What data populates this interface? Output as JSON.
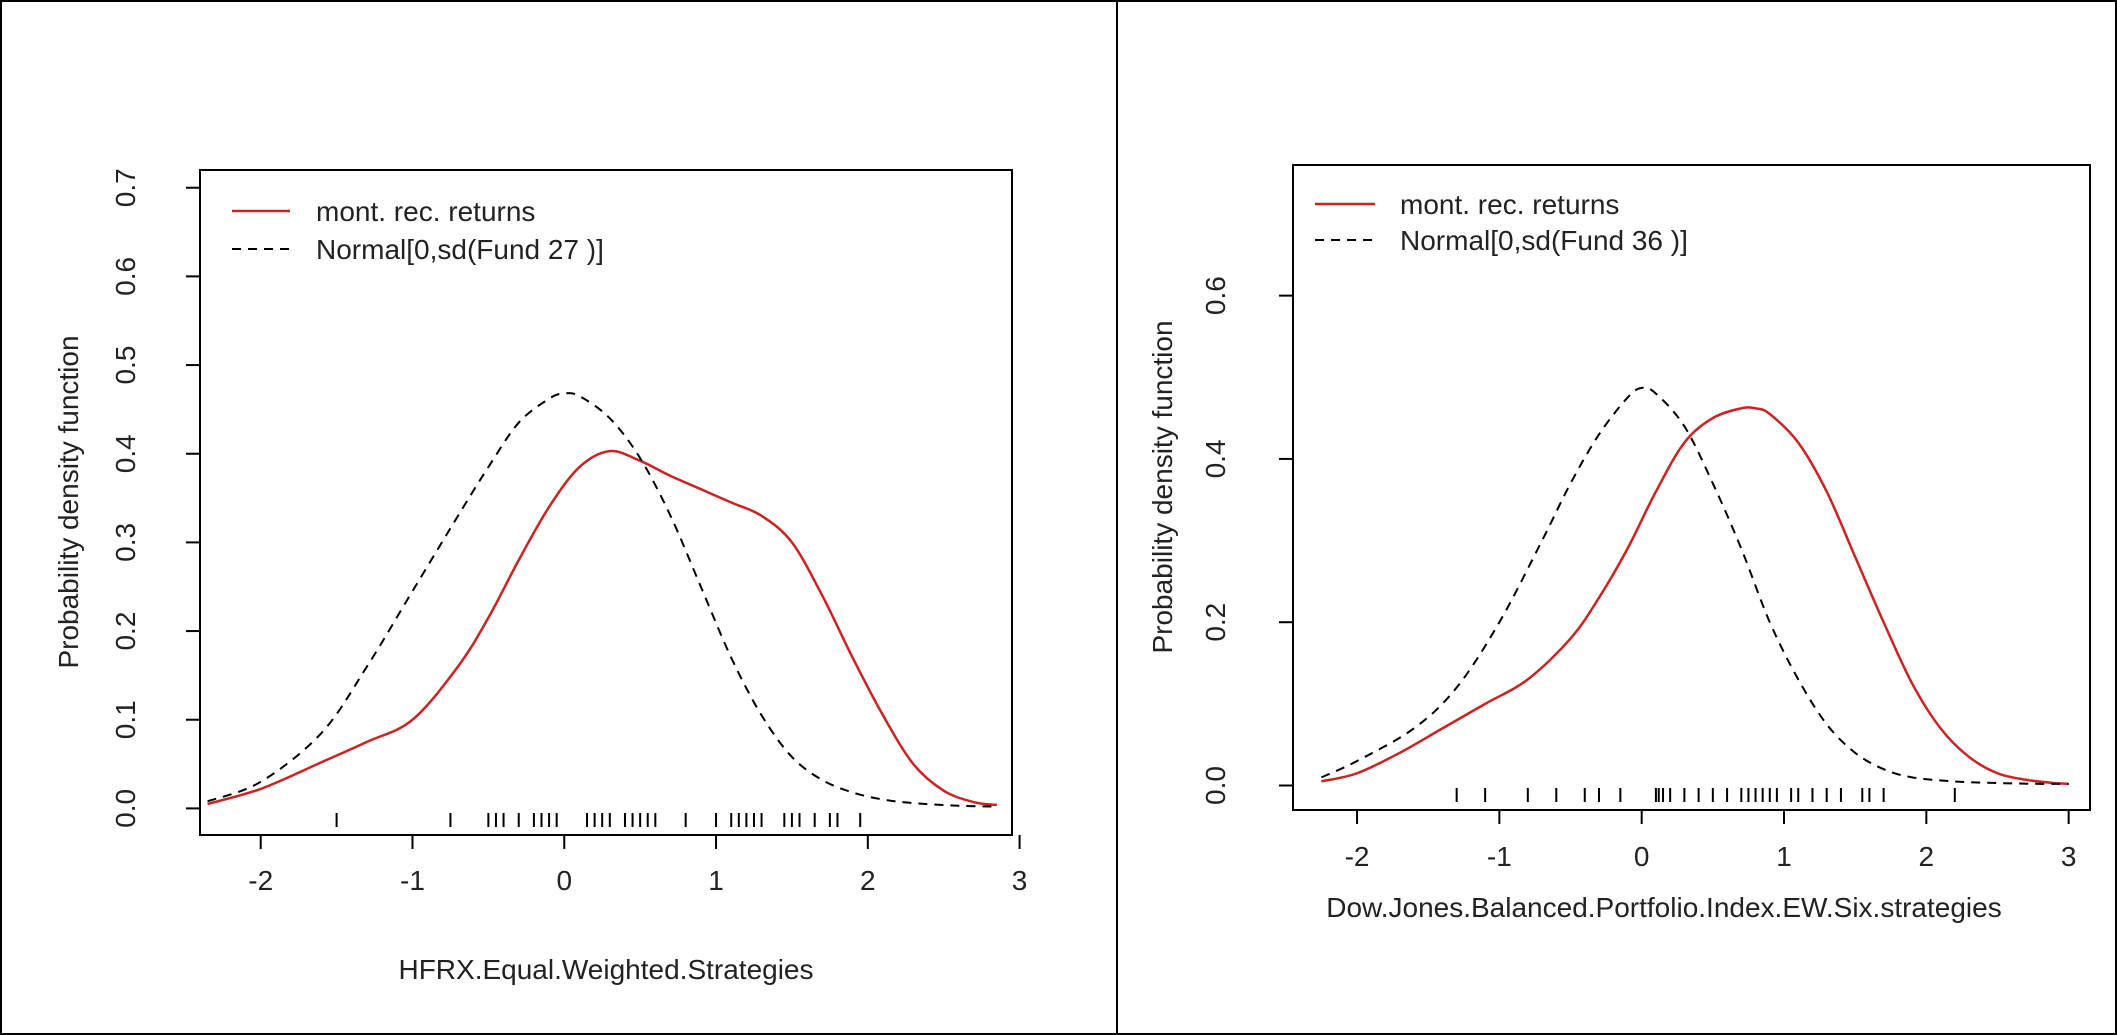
{
  "chart_data": [
    {
      "type": "line",
      "xlabel": "HFRX.Equal.Weighted.Strategies",
      "ylabel": "Probability density function",
      "xlim": [
        -2.4,
        2.95
      ],
      "ylim": [
        -0.03,
        0.72
      ],
      "xticks": [
        "-2",
        "-1",
        "0",
        "1",
        "2",
        "3"
      ],
      "yticks": [
        "0.0",
        "0.1",
        "0.2",
        "0.3",
        "0.4",
        "0.5",
        "0.6",
        "0.7"
      ],
      "legend_position": "top-left",
      "series": [
        {
          "name": "mont. rec. returns",
          "color": "#cc2222",
          "style": "solid",
          "x": [
            -2.35,
            -2.0,
            -1.6,
            -1.3,
            -1.0,
            -0.7,
            -0.5,
            -0.3,
            -0.1,
            0.1,
            0.3,
            0.5,
            0.7,
            0.9,
            1.1,
            1.3,
            1.5,
            1.7,
            1.9,
            2.1,
            2.3,
            2.5,
            2.7,
            2.85
          ],
          "y": [
            0.005,
            0.022,
            0.052,
            0.075,
            0.1,
            0.16,
            0.215,
            0.28,
            0.34,
            0.385,
            0.403,
            0.392,
            0.375,
            0.36,
            0.345,
            0.33,
            0.3,
            0.24,
            0.17,
            0.105,
            0.05,
            0.02,
            0.007,
            0.004
          ]
        },
        {
          "name": "Normal[0,sd(Fund 27 )]",
          "color": "#000000",
          "style": "dashed",
          "x": [
            -2.35,
            -2.0,
            -1.6,
            -1.3,
            -1.0,
            -0.7,
            -0.5,
            -0.3,
            -0.1,
            0.0,
            0.1,
            0.3,
            0.5,
            0.7,
            0.9,
            1.1,
            1.3,
            1.5,
            1.7,
            1.9,
            2.1,
            2.3,
            2.6,
            2.85
          ],
          "y": [
            0.008,
            0.03,
            0.085,
            0.16,
            0.245,
            0.33,
            0.385,
            0.435,
            0.462,
            0.468,
            0.465,
            0.44,
            0.395,
            0.33,
            0.25,
            0.17,
            0.105,
            0.058,
            0.032,
            0.018,
            0.01,
            0.006,
            0.003,
            0.002
          ]
        }
      ],
      "rug": [
        -1.5,
        -0.75,
        -0.5,
        -0.45,
        -0.4,
        -0.3,
        -0.2,
        -0.15,
        -0.1,
        -0.05,
        0.15,
        0.2,
        0.25,
        0.3,
        0.4,
        0.45,
        0.5,
        0.55,
        0.6,
        0.8,
        1.0,
        1.1,
        1.15,
        1.2,
        1.25,
        1.3,
        1.45,
        1.5,
        1.55,
        1.65,
        1.75,
        1.8,
        1.95
      ]
    },
    {
      "type": "line",
      "xlabel": "Dow.Jones.Balanced.Portfolio.Index.EW.Six.strategies",
      "ylabel": "Probability density function",
      "xlim": [
        -2.45,
        3.15
      ],
      "ylim": [
        -0.03,
        0.76
      ],
      "xticks": [
        "-2",
        "-1",
        "0",
        "1",
        "2",
        "3"
      ],
      "yticks": [
        "0.0",
        "0.2",
        "0.4",
        "0.6"
      ],
      "legend_position": "top-left",
      "series": [
        {
          "name": "mont. rec. returns",
          "color": "#cc2222",
          "style": "solid",
          "x": [
            -2.25,
            -2.0,
            -1.7,
            -1.4,
            -1.1,
            -0.8,
            -0.5,
            -0.3,
            -0.1,
            0.1,
            0.3,
            0.5,
            0.7,
            0.8,
            0.9,
            1.1,
            1.3,
            1.5,
            1.7,
            1.9,
            2.1,
            2.3,
            2.5,
            2.7,
            2.9,
            3.0
          ],
          "y": [
            0.005,
            0.015,
            0.04,
            0.07,
            0.1,
            0.13,
            0.18,
            0.23,
            0.29,
            0.36,
            0.42,
            0.45,
            0.462,
            0.462,
            0.455,
            0.42,
            0.36,
            0.28,
            0.2,
            0.125,
            0.07,
            0.035,
            0.015,
            0.007,
            0.003,
            0.002
          ]
        },
        {
          "name": "Normal[0,sd(Fund 36 )]",
          "color": "#000000",
          "style": "dashed",
          "x": [
            -2.25,
            -2.0,
            -1.6,
            -1.3,
            -1.0,
            -0.7,
            -0.5,
            -0.3,
            -0.1,
            0.0,
            0.1,
            0.3,
            0.5,
            0.7,
            0.9,
            1.1,
            1.3,
            1.5,
            1.7,
            1.9,
            2.2,
            2.5,
            2.8,
            3.0
          ],
          "y": [
            0.01,
            0.03,
            0.07,
            0.12,
            0.2,
            0.3,
            0.37,
            0.43,
            0.475,
            0.487,
            0.48,
            0.44,
            0.37,
            0.29,
            0.2,
            0.13,
            0.075,
            0.04,
            0.02,
            0.01,
            0.005,
            0.003,
            0.002,
            0.002
          ]
        }
      ],
      "rug": [
        -1.3,
        -1.1,
        -0.8,
        -0.6,
        -0.4,
        -0.3,
        -0.15,
        0.1,
        0.12,
        0.15,
        0.2,
        0.3,
        0.4,
        0.5,
        0.6,
        0.7,
        0.75,
        0.8,
        0.85,
        0.9,
        0.95,
        1.05,
        1.1,
        1.2,
        1.3,
        1.4,
        1.55,
        1.6,
        1.7,
        2.2
      ]
    }
  ]
}
